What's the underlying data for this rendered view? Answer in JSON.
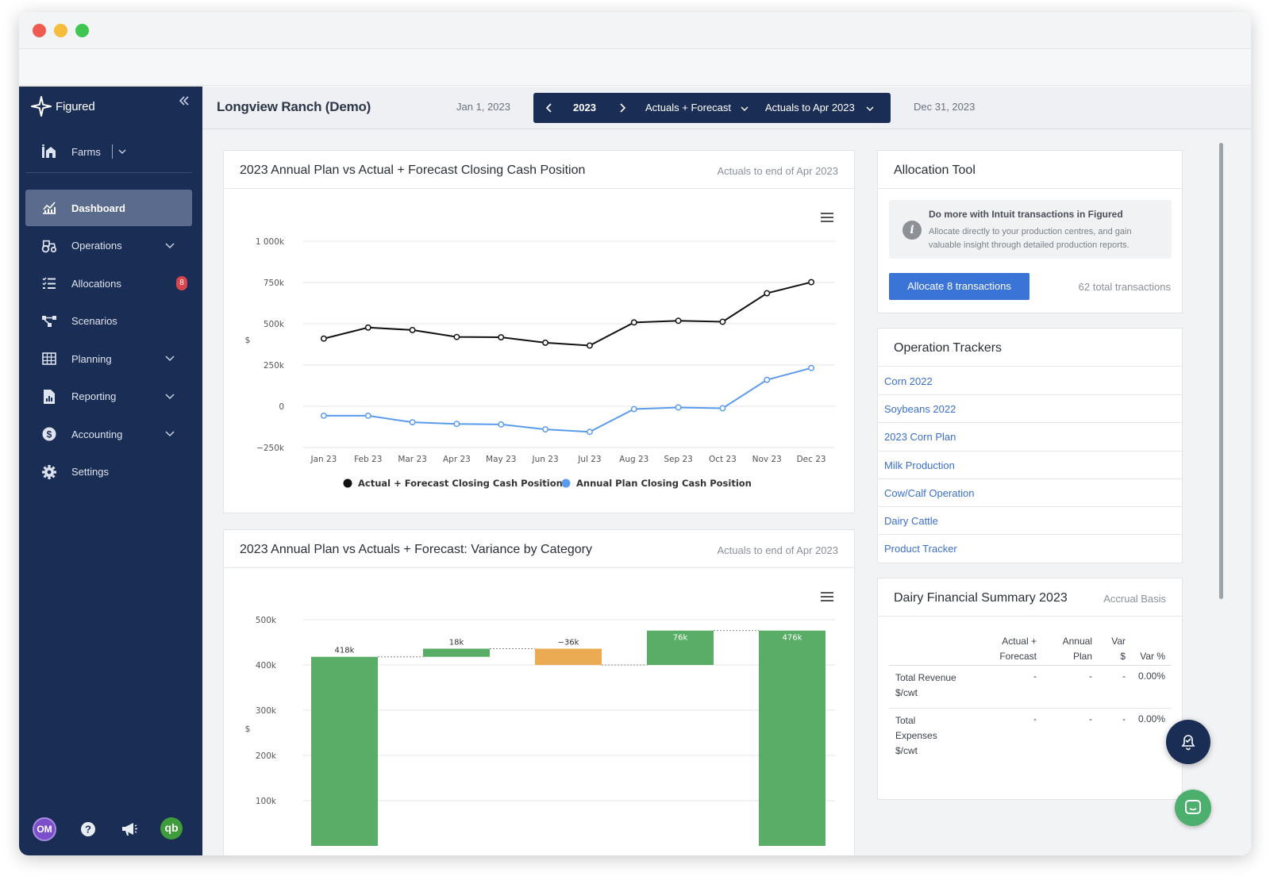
{
  "window": {
    "dot_colors": [
      "#ef5a51",
      "#f6bd3c",
      "#3fc652"
    ]
  },
  "sidebar": {
    "brand": "Figured",
    "farms_label": "Farms",
    "items": [
      {
        "label": "Dashboard",
        "icon": "chart-icon",
        "active": true
      },
      {
        "label": "Operations",
        "icon": "tractor-icon",
        "expandable": true
      },
      {
        "label": "Allocations",
        "icon": "checklist-icon",
        "badge": "8"
      },
      {
        "label": "Scenarios",
        "icon": "branch-icon"
      },
      {
        "label": "Planning",
        "icon": "grid-icon",
        "expandable": true
      },
      {
        "label": "Reporting",
        "icon": "report-icon",
        "expandable": true
      },
      {
        "label": "Accounting",
        "icon": "dollar-icon",
        "expandable": true
      },
      {
        "label": "Settings",
        "icon": "gear-icon"
      }
    ],
    "user_initials": "OM",
    "qb_label": "qb"
  },
  "header": {
    "farm_name": "Longview Ranch (Demo)",
    "start_date": "Jan 1, 2023",
    "end_date": "Dec 31, 2023",
    "year": "2023",
    "mode": "Actuals + Forecast",
    "actuals_to": "Actuals to Apr 2023"
  },
  "cash_card": {
    "title": "2023 Annual Plan vs Actual + Forecast Closing Cash Position",
    "subtitle": "Actuals to end of Apr 2023"
  },
  "variance_card": {
    "title": "2023 Annual Plan vs Actuals + Forecast: Variance by Category",
    "subtitle": "Actuals to end of Apr 2023"
  },
  "chart_data": [
    {
      "type": "line",
      "title": "2023 Annual Plan vs Actual + Forecast Closing Cash Position",
      "ylabel": "$",
      "x": [
        "Jan 23",
        "Feb 23",
        "Mar 23",
        "Apr 23",
        "May 23",
        "Jun 23",
        "Jul 23",
        "Aug 23",
        "Sep 23",
        "Oct 23",
        "Nov 23",
        "Dec 23"
      ],
      "ylim": [
        -250000,
        1000000
      ],
      "yticks": [
        "1 000k",
        "750k",
        "500k",
        "250k",
        "0",
        "−250k"
      ],
      "grid": true,
      "legend": "bottom",
      "series": [
        {
          "name": "Actual + Forecast Closing Cash Position",
          "color": "#111111",
          "values": [
            410000,
            477000,
            462000,
            420000,
            418000,
            385000,
            368000,
            508000,
            518000,
            512000,
            685000,
            752000
          ]
        },
        {
          "name": "Annual Plan Closing Cash Position",
          "color": "#5b9bec",
          "values": [
            -57000,
            -57000,
            -97000,
            -107000,
            -110000,
            -140000,
            -155000,
            -17000,
            -7000,
            -12000,
            160000,
            232000
          ]
        }
      ]
    },
    {
      "type": "bar",
      "subtype": "waterfall",
      "title": "2023 Annual Plan vs Actuals + Forecast: Variance by Category",
      "ylabel": "$",
      "yticks": [
        "500k",
        "400k",
        "300k",
        "200k",
        "100k"
      ],
      "ylim": [
        0,
        500000
      ],
      "grid": true,
      "bars": [
        {
          "label": "418k",
          "start": 0,
          "end": 418000,
          "color": "#5aad66"
        },
        {
          "label": "18k",
          "start": 418000,
          "end": 436000,
          "color": "#5aad66"
        },
        {
          "label": "−36k",
          "start": 436000,
          "end": 400000,
          "color": "#ebab52"
        },
        {
          "label": "76k",
          "start": 400000,
          "end": 476000,
          "color": "#5aad66"
        },
        {
          "label": "476k",
          "start": 0,
          "end": 476000,
          "color": "#5aad66"
        }
      ]
    }
  ],
  "allocation": {
    "title": "Allocation Tool",
    "info_title": "Do more with Intuit transactions in Figured",
    "info_text": "Allocate directly to your production centres, and gain valuable insight through detailed production reports.",
    "button": "Allocate 8 transactions",
    "total": "62 total transactions"
  },
  "trackers": {
    "title": "Operation Trackers",
    "items": [
      "Corn 2022",
      "Soybeans 2022",
      "2023 Corn Plan",
      "Milk Production",
      "Cow/Calf Operation",
      "Dairy Cattle",
      "Product Tracker"
    ]
  },
  "dairy": {
    "title": "Dairy Financial Summary 2023",
    "basis": "Accrual Basis",
    "columns": [
      "Actual +\nForecast",
      "Annual\nPlan",
      "Var\n$",
      "Var %"
    ],
    "rows": [
      {
        "label": "Total Revenue\n$/cwt",
        "actual": "-",
        "plan": "-",
        "var": "-",
        "pct": "0.00%"
      },
      {
        "label": "Total\nExpenses\n$/cwt",
        "actual": "-",
        "plan": "-",
        "var": "-",
        "pct": "0.00%"
      }
    ]
  }
}
